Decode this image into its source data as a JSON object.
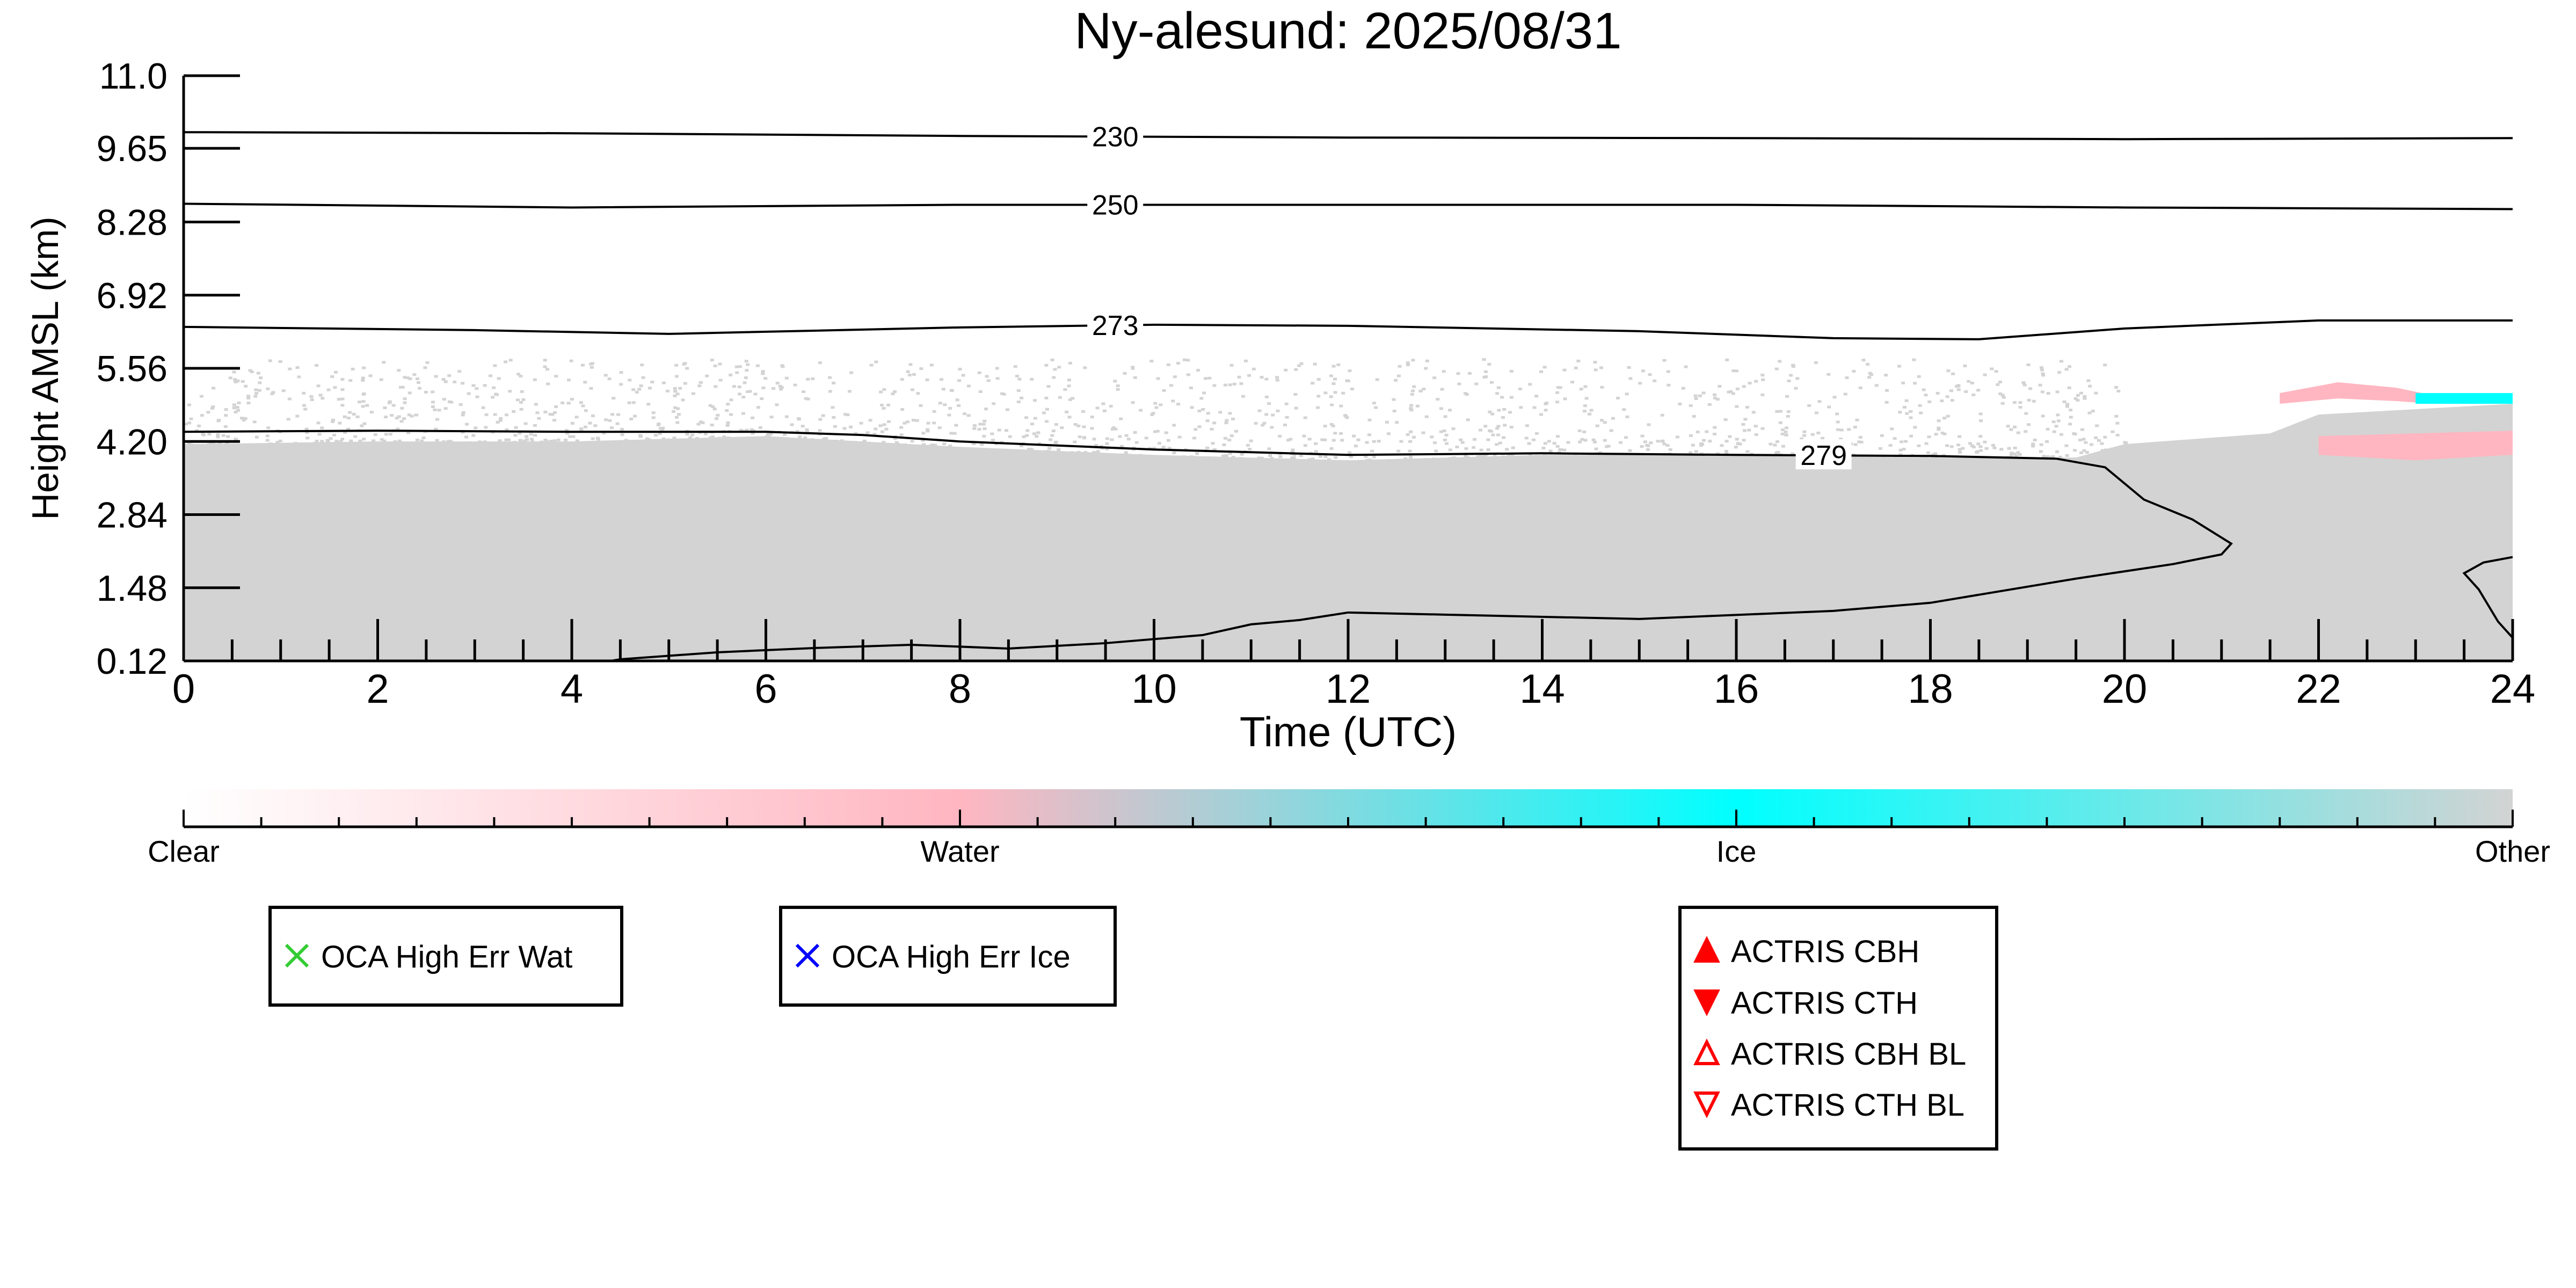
{
  "chart_data": {
    "type": "heatmap",
    "title": "Ny-alesund: 2025/08/31",
    "xlabel": "Time (UTC)",
    "ylabel": "Height AMSL (km)",
    "xlim": [
      0,
      24
    ],
    "ylim": [
      0.12,
      11.0
    ],
    "x_ticks": [
      "0",
      "2",
      "4",
      "6",
      "8",
      "10",
      "12",
      "14",
      "16",
      "18",
      "20",
      "22",
      "24"
    ],
    "y_ticks": [
      "0.12",
      "1.48",
      "2.84",
      "4.20",
      "5.56",
      "6.92",
      "8.28",
      "9.65",
      "11.0"
    ],
    "grid": false,
    "colorbar": {
      "labels": [
        "Clear",
        "Water",
        "Ice",
        "Other"
      ],
      "stops": [
        {
          "label": "Clear",
          "color": "#ffffff"
        },
        {
          "label": "Water",
          "color": "#ffb6c1"
        },
        {
          "label": "Ice",
          "color": "#00ffff"
        },
        {
          "label": "Other",
          "color": "#d3d3d3"
        }
      ]
    },
    "categories": [
      "Clear",
      "Water",
      "Ice",
      "Other"
    ],
    "colors": {
      "other": "#d3d3d3",
      "water": "#ffb6c1",
      "ice": "#00ffff",
      "contour": "#000000",
      "oca_wat": "#33cc33",
      "oca_ice": "#0000ff",
      "actris": "#ff0000"
    },
    "cloud_regions": [
      {
        "class": "Other",
        "top": [
          [
            0,
            4.15
          ],
          [
            2,
            4.2
          ],
          [
            4,
            4.2
          ],
          [
            6,
            4.3
          ],
          [
            8,
            4.1
          ],
          [
            10,
            3.95
          ],
          [
            12,
            3.85
          ],
          [
            14,
            3.95
          ],
          [
            16,
            3.95
          ],
          [
            18,
            3.9
          ],
          [
            19.5,
            3.9
          ],
          [
            20,
            4.15
          ],
          [
            21.5,
            4.35
          ],
          [
            22,
            4.7
          ],
          [
            23,
            4.8
          ],
          [
            24,
            4.9
          ]
        ],
        "base": 0.12
      },
      {
        "class": "Water",
        "top": [
          [
            21.6,
            5.1
          ],
          [
            22.2,
            5.3
          ],
          [
            22.8,
            5.2
          ],
          [
            23.2,
            5.05
          ]
        ],
        "base": [
          [
            21.6,
            4.9
          ],
          [
            22.2,
            5.0
          ],
          [
            22.8,
            4.95
          ],
          [
            23.2,
            4.9
          ]
        ]
      },
      {
        "class": "Water",
        "top": [
          [
            22.0,
            4.3
          ],
          [
            23,
            4.35
          ],
          [
            24,
            4.4
          ]
        ],
        "base": [
          [
            22.0,
            3.95
          ],
          [
            23,
            3.85
          ],
          [
            24,
            3.95
          ]
        ]
      },
      {
        "class": "Ice",
        "top": [
          [
            23.0,
            5.1
          ],
          [
            24,
            5.1
          ]
        ],
        "base": [
          [
            23.0,
            4.9
          ],
          [
            24,
            4.9
          ]
        ]
      }
    ],
    "sparse_cloud_scatter": {
      "class": "Other",
      "x_range": [
        0,
        20
      ],
      "height_range": [
        4.2,
        5.5
      ]
    },
    "temperature_contours": [
      {
        "label": "230",
        "label_at": 9.6,
        "points": [
          [
            0,
            9.95
          ],
          [
            4,
            9.93
          ],
          [
            8,
            9.88
          ],
          [
            12,
            9.85
          ],
          [
            16,
            9.84
          ],
          [
            20,
            9.82
          ],
          [
            24,
            9.84
          ]
        ]
      },
      {
        "label": "250",
        "label_at": 9.6,
        "points": [
          [
            0,
            8.62
          ],
          [
            4,
            8.55
          ],
          [
            8,
            8.6
          ],
          [
            12,
            8.6
          ],
          [
            16,
            8.6
          ],
          [
            20,
            8.55
          ],
          [
            24,
            8.52
          ]
        ]
      },
      {
        "label": "273",
        "label_at": 9.6,
        "points": [
          [
            0,
            6.33
          ],
          [
            3,
            6.27
          ],
          [
            5,
            6.2
          ],
          [
            8,
            6.32
          ],
          [
            10,
            6.37
          ],
          [
            12,
            6.35
          ],
          [
            15,
            6.25
          ],
          [
            17,
            6.12
          ],
          [
            18.5,
            6.1
          ],
          [
            20,
            6.3
          ],
          [
            22,
            6.45
          ],
          [
            24,
            6.45
          ]
        ]
      },
      {
        "label": "279",
        "label_at": 16.9,
        "points": [
          [
            0,
            4.38
          ],
          [
            2,
            4.4
          ],
          [
            4,
            4.38
          ],
          [
            6,
            4.38
          ],
          [
            7,
            4.32
          ],
          [
            8,
            4.2
          ],
          [
            10,
            4.05
          ],
          [
            12,
            3.95
          ],
          [
            14,
            3.98
          ],
          [
            16,
            3.95
          ],
          [
            18,
            3.93
          ],
          [
            19.3,
            3.88
          ],
          [
            19.8,
            3.72
          ],
          [
            20.2,
            3.12
          ],
          [
            20.7,
            2.75
          ],
          [
            21.1,
            2.3
          ],
          [
            21.0,
            2.1
          ],
          [
            20.5,
            1.92
          ],
          [
            19.5,
            1.65
          ],
          [
            18,
            1.2
          ],
          [
            17,
            1.05
          ],
          [
            15,
            0.9
          ],
          [
            13,
            0.98
          ],
          [
            12,
            1.02
          ],
          [
            11.5,
            0.88
          ],
          [
            11,
            0.8
          ],
          [
            10.5,
            0.6
          ],
          [
            9.5,
            0.45
          ],
          [
            8.5,
            0.35
          ],
          [
            7.5,
            0.42
          ],
          [
            6.5,
            0.36
          ],
          [
            5.5,
            0.28
          ],
          [
            4.5,
            0.15
          ],
          [
            4,
            0.0
          ]
        ]
      },
      {
        "label": "",
        "label_at": null,
        "points": [
          [
            24,
            2.05
          ],
          [
            23.7,
            1.95
          ],
          [
            23.5,
            1.75
          ],
          [
            23.65,
            1.45
          ],
          [
            23.85,
            0.85
          ],
          [
            24,
            0.55
          ]
        ]
      }
    ],
    "legends": [
      {
        "items": [
          {
            "label": "OCA High Err Wat",
            "marker": "x",
            "color": "#33cc33"
          }
        ]
      },
      {
        "items": [
          {
            "label": "OCA High Err Ice",
            "marker": "x",
            "color": "#0000ff"
          }
        ]
      },
      {
        "items": [
          {
            "label": "ACTRIS CBH",
            "marker": "triangle-up-filled",
            "color": "#ff0000"
          },
          {
            "label": "ACTRIS CTH",
            "marker": "triangle-down-filled",
            "color": "#ff0000"
          },
          {
            "label": "ACTRIS CBH BL",
            "marker": "triangle-up-open",
            "color": "#ff0000"
          },
          {
            "label": "ACTRIS CTH BL",
            "marker": "triangle-down-open",
            "color": "#ff0000"
          }
        ]
      }
    ]
  }
}
